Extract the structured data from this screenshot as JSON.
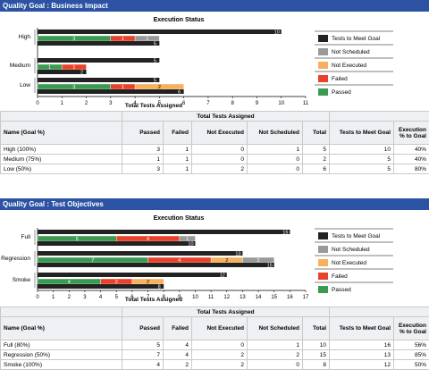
{
  "legend": [
    {
      "label": "Tests to Meet Goal",
      "color": "#222222"
    },
    {
      "label": "Not Scheduled",
      "color": "#999999"
    },
    {
      "label": "Not Executed",
      "color": "#f7b15e"
    },
    {
      "label": "Failed",
      "color": "#e8432a"
    },
    {
      "label": "Passed",
      "color": "#3a9a52"
    }
  ],
  "panels": [
    {
      "title": "Quality Goal : Business Impact",
      "group_header": "Total Tests Assigned",
      "columns": {
        "name": "Name (Goal %)",
        "passed": "Passed",
        "failed": "Failed",
        "not_executed": "Not Executed",
        "not_scheduled": "Not Scheduled",
        "total": "Total",
        "tests_to_meet": "Tests to Meet Goal",
        "exec_pct": "Execution % to Goal"
      },
      "rows": [
        {
          "name": "High (100%)",
          "passed": "3",
          "failed": "1",
          "not_executed": "0",
          "not_scheduled": "1",
          "total": "5",
          "tests_to_meet": "10",
          "exec_pct": "40%"
        },
        {
          "name": "Medium (75%)",
          "passed": "1",
          "failed": "1",
          "not_executed": "0",
          "not_scheduled": "0",
          "total": "2",
          "tests_to_meet": "5",
          "exec_pct": "40%"
        },
        {
          "name": "Low (50%)",
          "passed": "3",
          "failed": "1",
          "not_executed": "2",
          "not_scheduled": "0",
          "total": "6",
          "tests_to_meet": "5",
          "exec_pct": "80%"
        }
      ]
    },
    {
      "title": "Quality Goal : Test Objectives",
      "group_header": "Total Tests Assigned",
      "columns": {
        "name": "Name (Goal %)",
        "passed": "Passed",
        "failed": "Failed",
        "not_executed": "Not Executed",
        "not_scheduled": "Not Scheduled",
        "total": "Total",
        "tests_to_meet": "Tests to Meet Goal",
        "exec_pct": "Execution % to Goal"
      },
      "rows": [
        {
          "name": "Full (80%)",
          "passed": "5",
          "failed": "4",
          "not_executed": "0",
          "not_scheduled": "1",
          "total": "10",
          "tests_to_meet": "16",
          "exec_pct": "56%"
        },
        {
          "name": "Regression (50%)",
          "passed": "7",
          "failed": "4",
          "not_executed": "2",
          "not_scheduled": "2",
          "total": "15",
          "tests_to_meet": "13",
          "exec_pct": "85%"
        },
        {
          "name": "Smoke (100%)",
          "passed": "4",
          "failed": "2",
          "not_executed": "2",
          "not_scheduled": "0",
          "total": "8",
          "tests_to_meet": "12",
          "exec_pct": "50%"
        }
      ]
    }
  ],
  "chart_data": [
    {
      "type": "bar",
      "title": "Execution Status",
      "xlabel": "Total Tests Assigned",
      "xlim": [
        0,
        11
      ],
      "xticks": [
        0,
        1,
        2,
        3,
        4,
        5,
        6,
        7,
        8,
        9,
        10,
        11
      ],
      "categories": [
        "High",
        "Medium",
        "Low"
      ],
      "goal": [
        10,
        5,
        5
      ],
      "series": [
        {
          "name": "Passed",
          "values": [
            3,
            1,
            3
          ]
        },
        {
          "name": "Failed",
          "values": [
            1,
            1,
            1
          ]
        },
        {
          "name": "Not Executed",
          "values": [
            0,
            0,
            2
          ]
        },
        {
          "name": "Not Scheduled",
          "values": [
            1,
            0,
            0
          ]
        }
      ]
    },
    {
      "type": "bar",
      "title": "Execution Status",
      "xlabel": "Total Tests Assigned",
      "xlim": [
        0,
        17
      ],
      "xticks": [
        0,
        1,
        2,
        3,
        4,
        5,
        6,
        7,
        8,
        9,
        10,
        11,
        12,
        13,
        14,
        15,
        16,
        17
      ],
      "categories": [
        "Full",
        "Regression",
        "Smoke"
      ],
      "goal": [
        16,
        13,
        12
      ],
      "series": [
        {
          "name": "Passed",
          "values": [
            5,
            7,
            4
          ]
        },
        {
          "name": "Failed",
          "values": [
            4,
            4,
            2
          ]
        },
        {
          "name": "Not Executed",
          "values": [
            0,
            2,
            2
          ]
        },
        {
          "name": "Not Scheduled",
          "values": [
            1,
            2,
            0
          ]
        }
      ]
    }
  ]
}
